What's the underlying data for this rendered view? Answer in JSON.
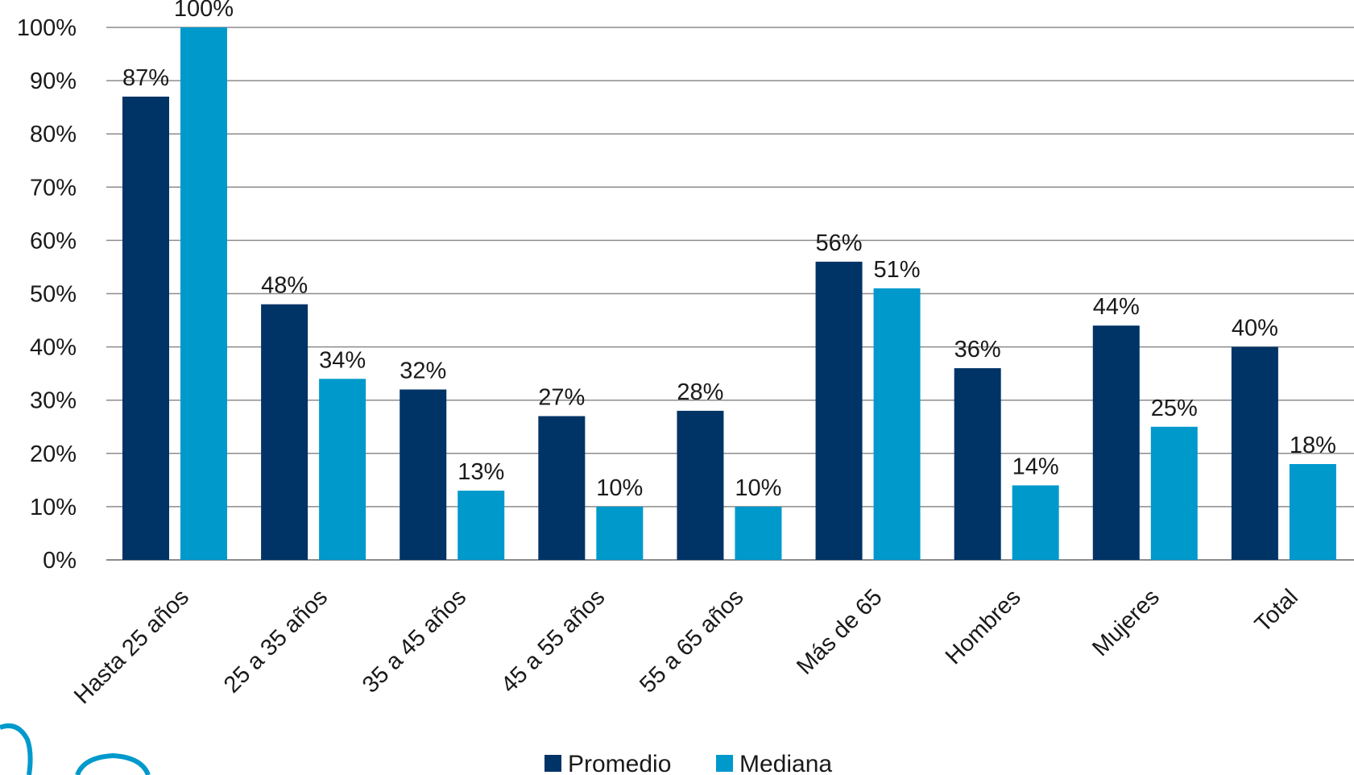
{
  "colors": {
    "promedio": "#003366",
    "mediana": "#0099cc",
    "logo": "#0099cc"
  },
  "chart_data": {
    "type": "bar",
    "categories": [
      "Hasta 25 años",
      "25 a 35 años",
      "35 a 45 años",
      "45 a 55 años",
      "55 a 65 años",
      "Más de 65",
      "Hombres",
      "Mujeres",
      "Total"
    ],
    "series": [
      {
        "name": "Promedio",
        "values": [
          87,
          48,
          32,
          27,
          28,
          56,
          36,
          44,
          40
        ],
        "labels": [
          "87%",
          "48%",
          "32%",
          "27%",
          "28%",
          "56%",
          "36%",
          "44%",
          "40%"
        ]
      },
      {
        "name": "Mediana",
        "values": [
          100,
          34,
          13,
          10,
          10,
          51,
          14,
          25,
          18
        ],
        "labels": [
          "100%",
          "34%",
          "13%",
          "10%",
          "10%",
          "51%",
          "14%",
          "25%",
          "18%"
        ]
      }
    ],
    "ylim": [
      0,
      100
    ],
    "yticks": [
      "0%",
      "10%",
      "20%",
      "30%",
      "40%",
      "50%",
      "60%",
      "70%",
      "80%",
      "90%",
      "100%"
    ],
    "grid": true,
    "legend_position": "bottom"
  }
}
